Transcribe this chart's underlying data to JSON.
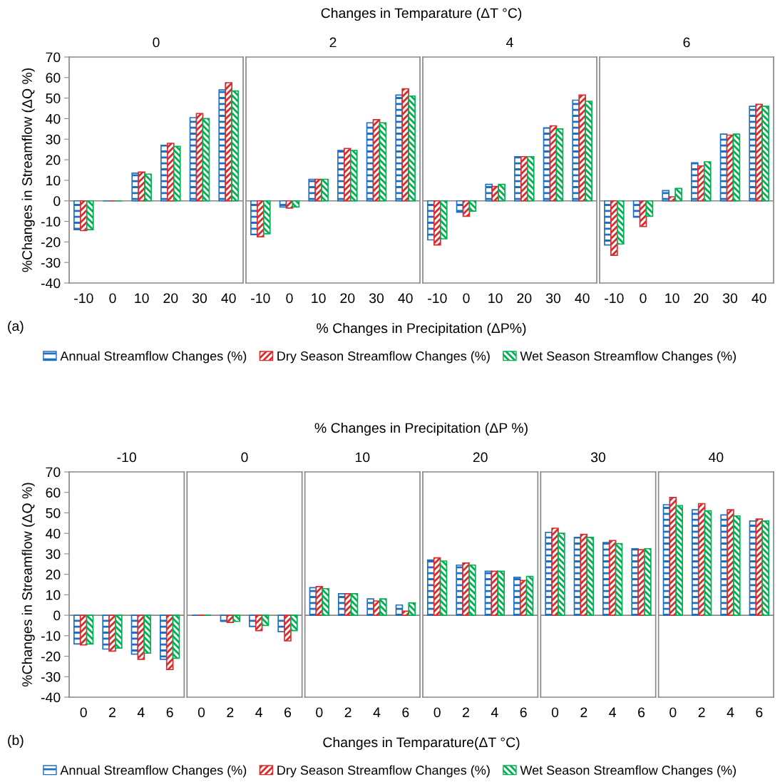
{
  "chart_data": [
    {
      "type": "bar",
      "title": "0",
      "ylabel": "%Changes in Streamflow (ΔQ %)",
      "xlabel": "% Changes in Precipitation (ΔP%)",
      "annotations": [
        "Changes in Temparature (ΔT °C)",
        "(a)"
      ],
      "legend": "bottom",
      "categories": [
        "-10",
        "0",
        "10",
        "20",
        "30",
        "40"
      ],
      "ylim": [
        -40,
        70
      ],
      "yticks": [
        -40,
        -30,
        -20,
        -10,
        0,
        10,
        20,
        30,
        40,
        50,
        60,
        70
      ],
      "series": [
        {
          "name": "Annual Streamflow Changes (%)",
          "color": "#1f6fc0",
          "values": [
            -14,
            0,
            13.5,
            27,
            40.5,
            54
          ]
        },
        {
          "name": "Dry Season Streamflow Changes (%)",
          "color": "#d92b2b",
          "values": [
            -14.5,
            0,
            14,
            28,
            42.5,
            57.5
          ]
        },
        {
          "name": "Wet Season Streamflow Changes (%)",
          "color": "#00b050",
          "values": [
            -14,
            0,
            13,
            26.5,
            40,
            53.5
          ]
        }
      ]
    },
    {
      "type": "bar",
      "title": "2",
      "tick_labels": "x",
      "categories": [
        "-10",
        "0",
        "10",
        "20",
        "30",
        "40"
      ],
      "ylim": [
        -40,
        70
      ],
      "series": [
        {
          "color": "#1f6fc0",
          "values": [
            -16.5,
            -3,
            10.5,
            24.5,
            38,
            51.5
          ]
        },
        {
          "color": "#d92b2b",
          "values": [
            -17.5,
            -3.5,
            10.5,
            25.5,
            39.5,
            54.5
          ]
        },
        {
          "color": "#00b050",
          "values": [
            -16,
            -3,
            10.5,
            24.5,
            38,
            51
          ]
        }
      ]
    },
    {
      "type": "bar",
      "title": "4",
      "tick_labels": "x",
      "categories": [
        "-10",
        "0",
        "10",
        "20",
        "30",
        "40"
      ],
      "ylim": [
        -40,
        70
      ],
      "series": [
        {
          "color": "#1f6fc0",
          "values": [
            -19,
            -5.5,
            8,
            21.5,
            35.5,
            49
          ]
        },
        {
          "color": "#d92b2b",
          "values": [
            -21.5,
            -7.5,
            7,
            21.5,
            36.5,
            51.5
          ]
        },
        {
          "color": "#00b050",
          "values": [
            -18.5,
            -5,
            8,
            21.5,
            35,
            48.5
          ]
        }
      ]
    },
    {
      "type": "bar",
      "title": "6",
      "tick_labels": "x",
      "categories": [
        "-10",
        "0",
        "10",
        "20",
        "30",
        "40"
      ],
      "ylim": [
        -40,
        70
      ],
      "series": [
        {
          "color": "#1f6fc0",
          "values": [
            -21.5,
            -8,
            5,
            18.5,
            32.5,
            46
          ]
        },
        {
          "color": "#d92b2b",
          "values": [
            -26.5,
            -12.5,
            2,
            17,
            32,
            47
          ]
        },
        {
          "color": "#00b050",
          "values": [
            -21,
            -7.5,
            6,
            19,
            32.5,
            46
          ]
        }
      ]
    },
    {
      "type": "bar",
      "title": "-10",
      "ylabel": "%Changes in Streamflow (ΔQ %)",
      "annotations": [
        "% Changes in Precipitation (ΔP %)",
        "(b)"
      ],
      "legend": "bottom",
      "categories": [
        "0",
        "2",
        "4",
        "6"
      ],
      "ylim": [
        -40,
        70
      ],
      "yticks": [
        -40,
        -30,
        -20,
        -10,
        0,
        10,
        20,
        30,
        40,
        50,
        60,
        70
      ],
      "series": [
        {
          "name": "Annual Streamflow Changes (%)",
          "color": "#1f6fc0",
          "values": [
            -14,
            -16.5,
            -19,
            -21.5
          ]
        },
        {
          "name": "Dry Season Streamflow Changes (%)",
          "color": "#d92b2b",
          "values": [
            -14.5,
            -17.5,
            -21.5,
            -26.5
          ]
        },
        {
          "name": "Wet Season Streamflow Changes (%)",
          "color": "#00b050",
          "values": [
            -14,
            -16,
            -18.5,
            -21
          ]
        }
      ]
    },
    {
      "type": "bar",
      "title": "0",
      "tick_labels": "x",
      "categories": [
        "0",
        "2",
        "4",
        "6"
      ],
      "ylim": [
        -40,
        70
      ],
      "series": [
        {
          "color": "#1f6fc0",
          "values": [
            0,
            -3,
            -5.5,
            -8
          ]
        },
        {
          "color": "#d92b2b",
          "values": [
            0,
            -3.5,
            -7.5,
            -12.5
          ]
        },
        {
          "color": "#00b050",
          "values": [
            0,
            -3,
            -5,
            -7.5
          ]
        }
      ]
    },
    {
      "type": "bar",
      "title": "10",
      "tick_labels": "x",
      "categories": [
        "0",
        "2",
        "4",
        "6"
      ],
      "ylim": [
        -40,
        70
      ],
      "series": [
        {
          "color": "#1f6fc0",
          "values": [
            13.5,
            10.5,
            8,
            5
          ]
        },
        {
          "color": "#d92b2b",
          "values": [
            14,
            10.5,
            7,
            2
          ]
        },
        {
          "color": "#00b050",
          "values": [
            13,
            10.5,
            8,
            6
          ]
        }
      ]
    },
    {
      "type": "bar",
      "title": "20",
      "xlabel": "Changes in Temparature(ΔT °C)",
      "tick_labels": "x",
      "categories": [
        "0",
        "2",
        "4",
        "6"
      ],
      "ylim": [
        -40,
        70
      ],
      "series": [
        {
          "color": "#1f6fc0",
          "values": [
            27,
            24.5,
            21.5,
            18.5
          ]
        },
        {
          "color": "#d92b2b",
          "values": [
            28,
            25.5,
            21.5,
            17
          ]
        },
        {
          "color": "#00b050",
          "values": [
            26.5,
            24.5,
            21.5,
            19
          ]
        }
      ]
    },
    {
      "type": "bar",
      "title": "30",
      "tick_labels": "x",
      "categories": [
        "0",
        "2",
        "4",
        "6"
      ],
      "ylim": [
        -40,
        70
      ],
      "series": [
        {
          "color": "#1f6fc0",
          "values": [
            40.5,
            38,
            35.5,
            32.5
          ]
        },
        {
          "color": "#d92b2b",
          "values": [
            42.5,
            39.5,
            36.5,
            32
          ]
        },
        {
          "color": "#00b050",
          "values": [
            40,
            38,
            35,
            32.5
          ]
        }
      ]
    },
    {
      "type": "bar",
      "title": "40",
      "tick_labels": "x",
      "categories": [
        "0",
        "2",
        "4",
        "6"
      ],
      "ylim": [
        -40,
        70
      ],
      "series": [
        {
          "color": "#1f6fc0",
          "values": [
            54,
            51.5,
            49,
            46
          ]
        },
        {
          "color": "#d92b2b",
          "values": [
            57.5,
            54.5,
            51.5,
            47
          ]
        },
        {
          "color": "#00b050",
          "values": [
            53.5,
            51,
            48.5,
            46
          ]
        }
      ]
    }
  ]
}
